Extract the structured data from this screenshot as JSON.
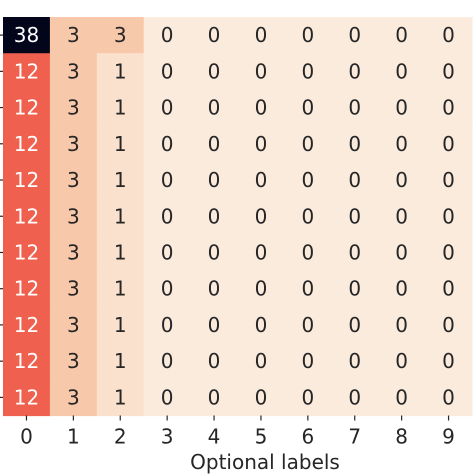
{
  "chart_data": {
    "type": "heatmap",
    "title": "",
    "xlabel": "Optional labels",
    "ylabel": "",
    "x_categories": [
      "0",
      "1",
      "2",
      "3",
      "4",
      "5",
      "6",
      "7",
      "8",
      "9"
    ],
    "values": [
      [
        38,
        3,
        3,
        0,
        0,
        0,
        0,
        0,
        0,
        0
      ],
      [
        12,
        3,
        1,
        0,
        0,
        0,
        0,
        0,
        0,
        0
      ],
      [
        12,
        3,
        1,
        0,
        0,
        0,
        0,
        0,
        0,
        0
      ],
      [
        12,
        3,
        1,
        0,
        0,
        0,
        0,
        0,
        0,
        0
      ],
      [
        12,
        3,
        1,
        0,
        0,
        0,
        0,
        0,
        0,
        0
      ],
      [
        12,
        3,
        1,
        0,
        0,
        0,
        0,
        0,
        0,
        0
      ],
      [
        12,
        3,
        1,
        0,
        0,
        0,
        0,
        0,
        0,
        0
      ],
      [
        12,
        3,
        1,
        0,
        0,
        0,
        0,
        0,
        0,
        0
      ],
      [
        12,
        3,
        1,
        0,
        0,
        0,
        0,
        0,
        0,
        0
      ],
      [
        12,
        3,
        1,
        0,
        0,
        0,
        0,
        0,
        0,
        0
      ],
      [
        12,
        3,
        1,
        0,
        0,
        0,
        0,
        0,
        0,
        0
      ]
    ],
    "value_range": [
      0,
      38
    ],
    "colormap": "rocket_r",
    "annotate": true,
    "colorbar": false,
    "colors": {
      "38": "#03051a",
      "12": "#f0604e",
      "3": "#f7c8aa",
      "1": "#fae1ce",
      "0": "#faebdd"
    }
  }
}
